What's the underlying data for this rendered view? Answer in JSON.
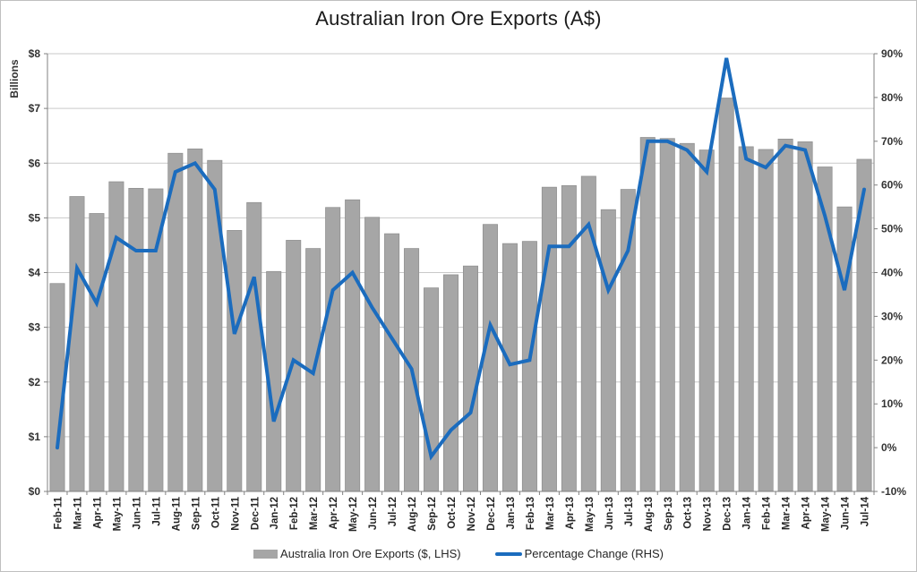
{
  "chart_data": {
    "type": "bar+line combo",
    "title": "Australian Iron Ore Exports (A$)",
    "grid": true,
    "legend_position": "bottom",
    "categories": [
      "Feb-11",
      "Mar-11",
      "Apr-11",
      "May-11",
      "Jun-11",
      "Jul-11",
      "Aug-11",
      "Sep-11",
      "Oct-11",
      "Nov-11",
      "Dec-11",
      "Jan-12",
      "Feb-12",
      "Mar-12",
      "Apr-12",
      "May-12",
      "Jun-12",
      "Jul-12",
      "Aug-12",
      "Sep-12",
      "Oct-12",
      "Nov-12",
      "Dec-12",
      "Jan-13",
      "Feb-13",
      "Mar-13",
      "Apr-13",
      "May-13",
      "Jun-13",
      "Jul-13",
      "Aug-13",
      "Sep-13",
      "Oct-13",
      "Nov-13",
      "Dec-13",
      "Jan-14",
      "Feb-14",
      "Mar-14",
      "Apr-14",
      "May-14",
      "Jun-14",
      "Jul-14"
    ],
    "series": [
      {
        "name": "Australia Iron Ore Exports ($, LHS)",
        "type": "bar",
        "axis": "left",
        "units": "A$ billions",
        "color": "#a6a6a6",
        "border_color": "#8f8f8f",
        "values": [
          3.8,
          5.39,
          5.08,
          5.66,
          5.54,
          5.53,
          6.18,
          6.26,
          6.05,
          4.77,
          5.28,
          4.02,
          4.59,
          4.44,
          5.19,
          5.33,
          5.01,
          4.71,
          4.44,
          3.72,
          3.96,
          4.12,
          4.88,
          4.53,
          4.57,
          5.56,
          5.59,
          5.76,
          5.15,
          5.52,
          6.47,
          6.45,
          6.36,
          6.24,
          7.19,
          6.3,
          6.25,
          6.44,
          6.39,
          5.93,
          5.2,
          6.07
        ]
      },
      {
        "name": "Percentage Change (RHS)",
        "type": "line",
        "axis": "right",
        "units": "percent",
        "color": "#1b6cbe",
        "values": [
          0,
          41,
          33,
          48,
          45,
          45,
          63,
          65,
          59,
          26,
          39,
          6,
          20,
          17,
          36,
          40,
          32,
          25,
          18,
          -2,
          4,
          8,
          28,
          19,
          20,
          46,
          46,
          51,
          36,
          45,
          70,
          70,
          68,
          63,
          89,
          66,
          64,
          69,
          68,
          53,
          36,
          59
        ]
      }
    ],
    "left_axis": {
      "title": "Billions",
      "min": 0,
      "max": 8,
      "step": 1,
      "tick_labels": [
        "$0",
        "$1",
        "$2",
        "$3",
        "$4",
        "$5",
        "$6",
        "$7",
        "$8"
      ]
    },
    "right_axis": {
      "min": -10,
      "max": 90,
      "step": 10,
      "tick_labels": [
        "-10%",
        "0%",
        "10%",
        "20%",
        "30%",
        "40%",
        "50%",
        "60%",
        "70%",
        "80%",
        "90%"
      ]
    },
    "xlabel": "",
    "colors": {
      "gridline": "#c9c9c9",
      "axis_line": "#808080",
      "tick_text": "#333333",
      "title_text": "#1a1a1a"
    }
  }
}
